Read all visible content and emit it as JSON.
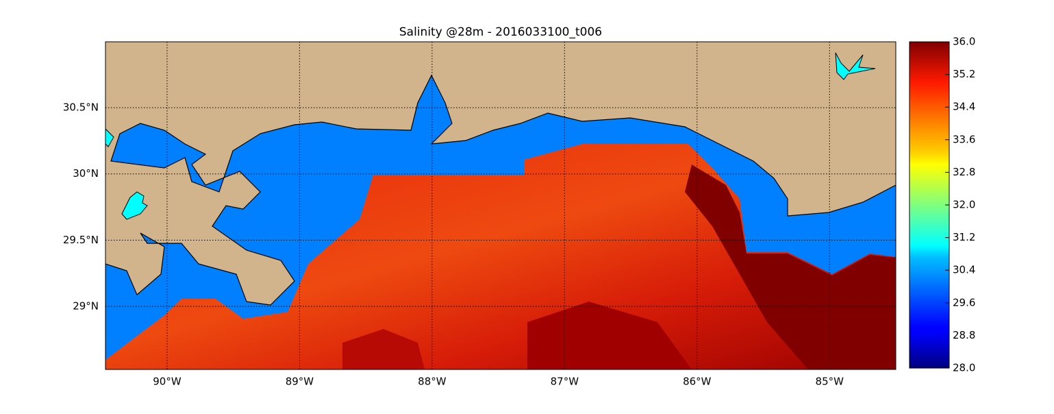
{
  "chart_data": {
    "type": "map",
    "title": "Salinity @28m - 2016033100_t006",
    "xlim": [
      -90.465,
      -84.5
    ],
    "ylim": [
      28.524,
      30.997
    ],
    "xticks": [
      {
        "value": -90,
        "label": "90°W"
      },
      {
        "value": -89,
        "label": "89°W"
      },
      {
        "value": -88,
        "label": "88°W"
      },
      {
        "value": -87,
        "label": "87°W"
      },
      {
        "value": -86,
        "label": "86°W"
      },
      {
        "value": -85,
        "label": "85°W"
      }
    ],
    "yticks": [
      {
        "value": 29,
        "label": "29°N"
      },
      {
        "value": 29.5,
        "label": "29.5°N"
      },
      {
        "value": 30,
        "label": "30°N"
      },
      {
        "value": 30.5,
        "label": "30.5°N"
      }
    ],
    "grid": true,
    "colorbar": {
      "lim": [
        28,
        36
      ],
      "ticks": [
        {
          "value": 28,
          "label": "28.0"
        },
        {
          "value": 28.8,
          "label": "28.8"
        },
        {
          "value": 29.6,
          "label": "29.6"
        },
        {
          "value": 30.4,
          "label": "30.4"
        },
        {
          "value": 31.2,
          "label": "31.2"
        },
        {
          "value": 32,
          "label": "32.0"
        },
        {
          "value": 32.8,
          "label": "32.8"
        },
        {
          "value": 33.6,
          "label": "33.6"
        },
        {
          "value": 34.4,
          "label": "34.4"
        },
        {
          "value": 35.2,
          "label": "35.2"
        },
        {
          "value": 36,
          "label": "36.0"
        }
      ]
    }
  }
}
